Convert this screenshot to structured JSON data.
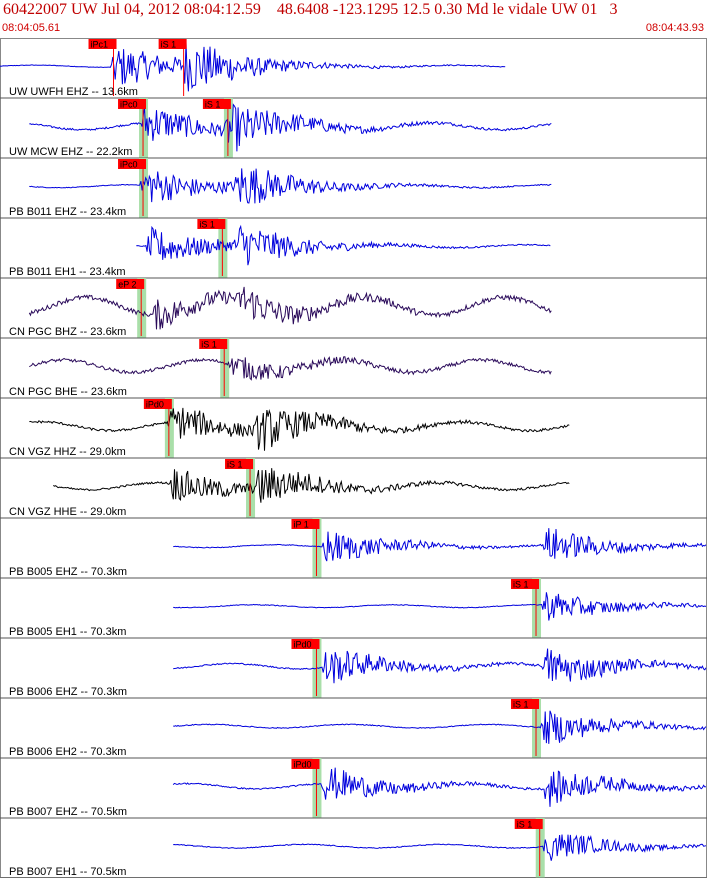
{
  "header": {
    "title": "60422007 UW Jul 04, 2012 08:04:12.59    48.6408 -123.1295 12.5 0.30 Md le vidale UW 01   3",
    "start_time": "08:04:05.61",
    "end_time": "08:04:43.93"
  },
  "colors": {
    "title": "#c00000",
    "pick_box": "#ff0000",
    "highlight": "#a9dfa9",
    "blue": "#0000dd",
    "purple": "#2a0a5a",
    "black": "#000000"
  },
  "chart_data": {
    "type": "line",
    "x_range_seconds": [
      5.61,
      43.93
    ],
    "traces": [
      {
        "label": "UW UWFH EHZ -- 13.6km",
        "color": "blue",
        "start": 5.61,
        "end": 33.0,
        "amp": 1.0,
        "noise": 0.06,
        "picks": [
          {
            "label": "iPc1",
            "t": 11.6
          },
          {
            "label": "iS 1",
            "t": 15.4
          }
        ],
        "events": [
          11.6,
          15.4
        ],
        "hl": false
      },
      {
        "label": "UW MCW EHZ -- 22.2km",
        "color": "blue",
        "start": 7.2,
        "end": 35.5,
        "amp": 0.9,
        "noise": 0.2,
        "picks": [
          {
            "label": "iPc0",
            "t": 13.2
          },
          {
            "label": "iS 1",
            "t": 17.8
          }
        ],
        "events": [
          13.2,
          17.8
        ],
        "hl": true
      },
      {
        "label": "PB B011 EHZ -- 23.4km",
        "color": "blue",
        "start": 7.2,
        "end": 35.5,
        "amp": 0.9,
        "noise": 0.08,
        "picks": [
          {
            "label": "iPc0",
            "t": 13.2
          }
        ],
        "events": [
          13.2,
          18.3
        ],
        "hl": true
      },
      {
        "label": "PB B011 EH1 -- 23.4km",
        "color": "blue",
        "start": 13.0,
        "end": 35.5,
        "amp": 0.85,
        "noise": 0.08,
        "picks": [
          {
            "label": "iS 1",
            "t": 17.5
          }
        ],
        "events": [
          13.5,
          18.3
        ],
        "hl": true
      },
      {
        "label": "CN PGC BHZ -- 23.6km",
        "color": "purple",
        "start": 7.2,
        "end": 35.5,
        "amp": 0.6,
        "noise": 0.5,
        "picks": [
          {
            "label": "eP 2",
            "t": 13.1
          }
        ],
        "events": [
          13.8,
          18.5
        ],
        "hl": true
      },
      {
        "label": "CN PGC BHE -- 23.6km",
        "color": "purple",
        "start": 7.2,
        "end": 35.5,
        "amp": 0.5,
        "noise": 0.35,
        "picks": [
          {
            "label": "iS 1",
            "t": 17.6
          }
        ],
        "events": [
          18.0
        ],
        "hl": true
      },
      {
        "label": "CN VGZ HHZ -- 29.0km",
        "color": "black",
        "start": 7.2,
        "end": 36.5,
        "amp": 0.8,
        "noise": 0.25,
        "picks": [
          {
            "label": "iPd0",
            "t": 14.6
          }
        ],
        "events": [
          14.7,
          19.4
        ],
        "hl": true
      },
      {
        "label": "CN VGZ HHE -- 29.0km",
        "color": "black",
        "start": 8.5,
        "end": 36.5,
        "amp": 0.75,
        "noise": 0.2,
        "picks": [
          {
            "label": "iS 1",
            "t": 19.0
          }
        ],
        "events": [
          14.7,
          19.4
        ],
        "hl": true
      },
      {
        "label": "PB B005 EHZ -- 70.3km",
        "color": "blue",
        "start": 15.0,
        "end": 43.93,
        "amp": 0.8,
        "noise": 0.08,
        "picks": [
          {
            "label": "iP 1",
            "t": 22.6
          }
        ],
        "events": [
          23.0,
          35.0
        ],
        "hl": true
      },
      {
        "label": "PB B005 EH1 -- 70.3km",
        "color": "blue",
        "start": 15.0,
        "end": 43.93,
        "amp": 0.7,
        "noise": 0.08,
        "picks": [
          {
            "label": "iS 1",
            "t": 34.5
          }
        ],
        "events": [
          34.9
        ],
        "hl": true
      },
      {
        "label": "PB B006 EHZ -- 70.3km",
        "color": "blue",
        "start": 15.0,
        "end": 43.93,
        "amp": 0.85,
        "noise": 0.15,
        "picks": [
          {
            "label": "iPd0",
            "t": 22.6
          }
        ],
        "events": [
          23.0,
          35.0
        ],
        "hl": true
      },
      {
        "label": "PB B006 EH2 -- 70.3km",
        "color": "blue",
        "start": 15.0,
        "end": 43.93,
        "amp": 0.8,
        "noise": 0.1,
        "picks": [
          {
            "label": "iS 1",
            "t": 34.5
          }
        ],
        "events": [
          34.9
        ],
        "hl": true
      },
      {
        "label": "PB B007 EHZ -- 70.5km",
        "color": "blue",
        "start": 15.0,
        "end": 43.93,
        "amp": 0.8,
        "noise": 0.15,
        "picks": [
          {
            "label": "iPd0",
            "t": 22.6
          }
        ],
        "events": [
          23.0,
          35.0
        ],
        "hl": true
      },
      {
        "label": "PB B007 EH1 -- 70.5km",
        "color": "blue",
        "start": 15.0,
        "end": 43.93,
        "amp": 0.7,
        "noise": 0.1,
        "picks": [
          {
            "label": "iS 1",
            "t": 34.7
          }
        ],
        "events": [
          35.0
        ],
        "hl": true
      }
    ]
  }
}
